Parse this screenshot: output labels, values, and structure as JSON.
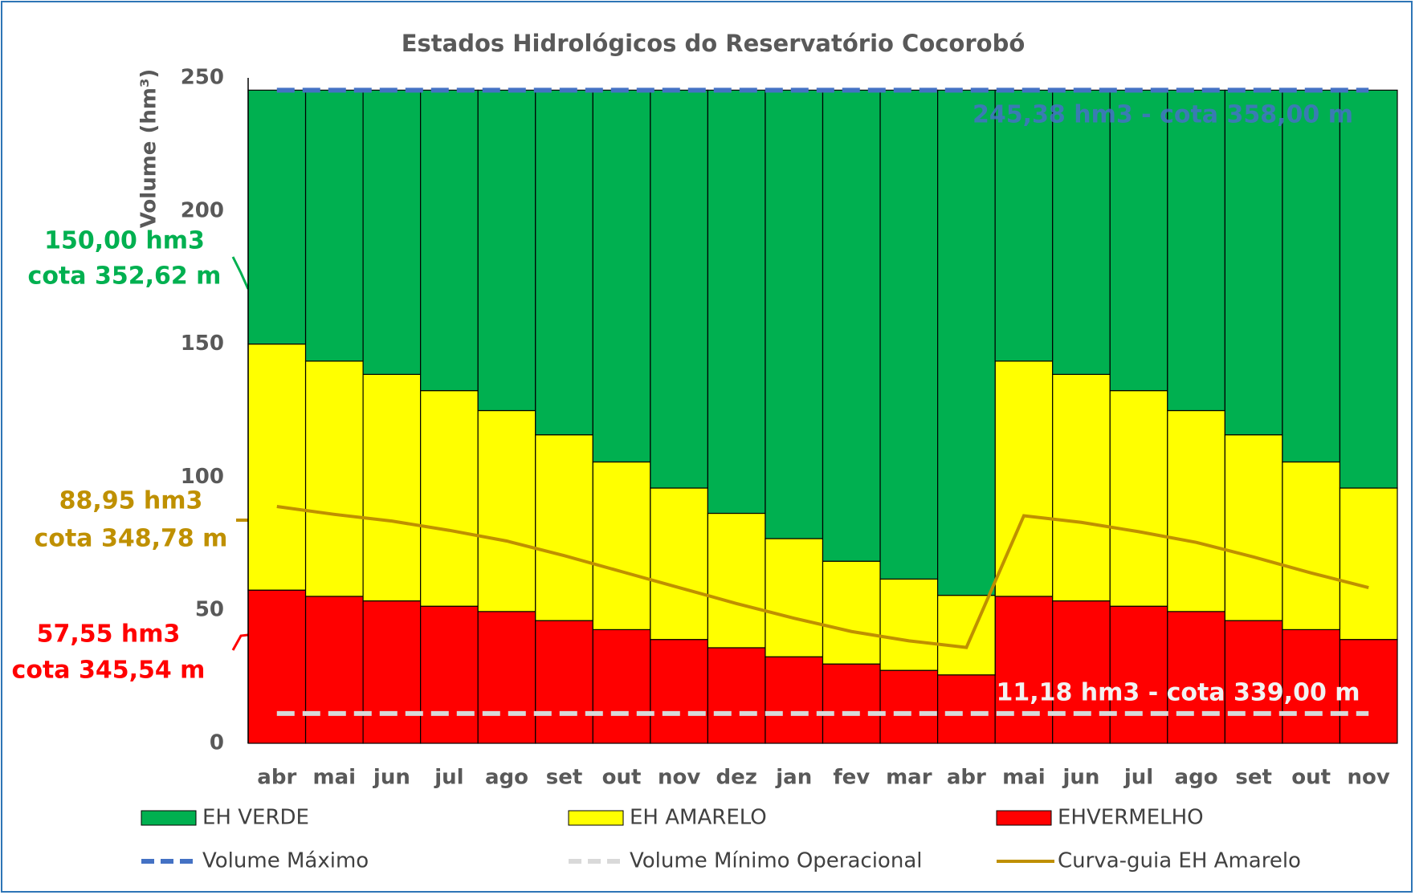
{
  "chart_data": {
    "type": "bar",
    "stacked": true,
    "title": "Estados Hidrológicos do Reservatório Cocorobó",
    "y_label": "Volume (hm³)",
    "categories": [
      "abr",
      "mai",
      "jun",
      "jul",
      "ago",
      "set",
      "out",
      "nov",
      "dez",
      "jan",
      "fev",
      "mar",
      "abr",
      "mai",
      "jun",
      "jul",
      "ago",
      "set",
      "out",
      "nov"
    ],
    "series": [
      {
        "name": "EHVERMELHO",
        "color": "#ff0000",
        "values": [
          57.55,
          55.2,
          53.5,
          51.5,
          49.5,
          46.1,
          42.7,
          39.0,
          35.9,
          32.5,
          29.8,
          27.4,
          25.7,
          55.2,
          53.5,
          51.5,
          49.5,
          46.1,
          42.7,
          39.0
        ]
      },
      {
        "name": "EH AMARELO",
        "color": "#ffff00",
        "values": [
          92.45,
          88.4,
          85.1,
          81.0,
          75.5,
          69.8,
          63.0,
          56.9,
          50.5,
          44.4,
          38.6,
          34.3,
          29.9,
          88.4,
          85.1,
          81.0,
          75.5,
          69.8,
          63.0,
          56.9
        ]
      },
      {
        "name": "EH VERDE",
        "color": "#00b050",
        "values": [
          95.38,
          101.78,
          106.78,
          112.88,
          120.38,
          129.48,
          139.68,
          149.48,
          158.98,
          168.48,
          176.98,
          183.68,
          189.78,
          101.78,
          106.78,
          112.88,
          120.38,
          129.48,
          139.68,
          149.48
        ]
      },
      {
        "name": "Volume Máximo",
        "type": "line",
        "dashed": true,
        "color": "#4472c4",
        "values": [
          245.38,
          245.38,
          245.38,
          245.38,
          245.38,
          245.38,
          245.38,
          245.38,
          245.38,
          245.38,
          245.38,
          245.38,
          245.38,
          245.38,
          245.38,
          245.38,
          245.38,
          245.38,
          245.38,
          245.38
        ]
      },
      {
        "name": "Volume Mínimo Operacional",
        "type": "line",
        "dashed": true,
        "color": "#d9d9d9",
        "values": [
          11.18,
          11.18,
          11.18,
          11.18,
          11.18,
          11.18,
          11.18,
          11.18,
          11.18,
          11.18,
          11.18,
          11.18,
          11.18,
          11.18,
          11.18,
          11.18,
          11.18,
          11.18,
          11.18,
          11.18
        ]
      },
      {
        "name": "Curva-guia EH Amarelo",
        "type": "line",
        "dashed": false,
        "color": "#bf9000",
        "values": [
          88.95,
          86.0,
          83.5,
          80.0,
          76.0,
          70.5,
          64.5,
          58.5,
          52.5,
          47.0,
          42.0,
          38.5,
          36.0,
          85.5,
          83.0,
          79.5,
          75.5,
          70.0,
          64.0,
          58.5
        ]
      }
    ],
    "legend_order": [
      2,
      1,
      0,
      3,
      4,
      5
    ],
    "ylim": [
      0,
      250
    ],
    "yticks": [
      0,
      50,
      100,
      150,
      200,
      250
    ],
    "grid": false,
    "annotations": [
      {
        "lines": [
          "245,38 hm3 - cota 358,00 m"
        ],
        "color": "#4472c4"
      },
      {
        "lines": [
          "11,18 hm3 - cota 339,00 m"
        ],
        "color": "#f2f2f2"
      },
      {
        "lines": [
          "150,00  hm3",
          "cota 352,62 m"
        ],
        "color": "#00b050"
      },
      {
        "lines": [
          "88,95  hm3",
          "cota 348,78 m"
        ],
        "color": "#bf9000"
      },
      {
        "lines": [
          "57,55  hm3",
          "cota 345,54 m"
        ],
        "color": "#ff0000"
      }
    ]
  }
}
